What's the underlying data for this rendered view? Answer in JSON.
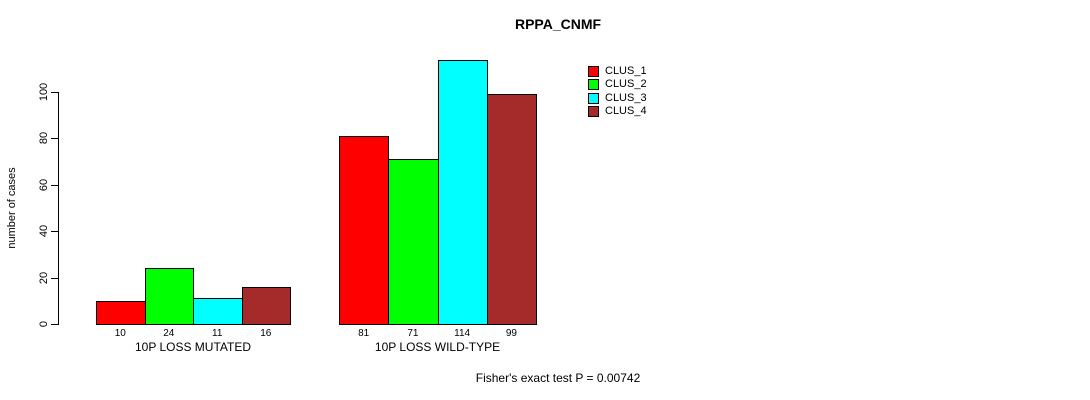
{
  "chart_data": {
    "type": "bar",
    "title": "RPPA_CNMF",
    "ylabel": "number of cases",
    "xlabel": "",
    "categories": [
      "10P LOSS MUTATED",
      "10P LOSS WILD-TYPE"
    ],
    "series": [
      {
        "name": "CLUS_1",
        "color": "#FF0000",
        "values": [
          10,
          81
        ]
      },
      {
        "name": "CLUS_2",
        "color": "#00FF00",
        "values": [
          24,
          71
        ]
      },
      {
        "name": "CLUS_3",
        "color": "#00FFFF",
        "values": [
          11,
          114
        ]
      },
      {
        "name": "CLUS_4",
        "color": "#A52A2A",
        "values": [
          16,
          99
        ]
      }
    ],
    "value_labels": [
      [
        10,
        24,
        11,
        16
      ],
      [
        81,
        71,
        114,
        99
      ]
    ],
    "y_ticks": [
      0,
      20,
      40,
      60,
      80,
      100
    ],
    "ylim": [
      0,
      100
    ],
    "grid": false,
    "legend_position": "top-right",
    "annotation": "Fisher's exact test P = 0.00742"
  }
}
